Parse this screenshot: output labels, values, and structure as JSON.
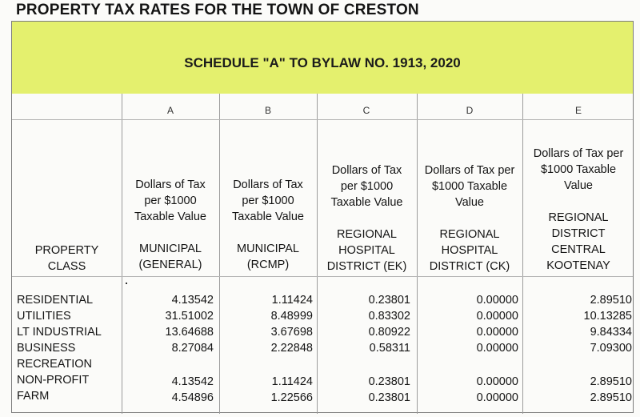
{
  "page_title": "PROPERTY TAX RATES FOR THE TOWN OF CRESTON",
  "schedule_title": "SCHEDULE \"A\" TO BYLAW NO. 1913, 2020",
  "property_class_header": [
    "PROPERTY",
    "CLASS"
  ],
  "columns": [
    {
      "letter": "A",
      "desc": [
        "Dollars of Tax",
        "per $1000",
        "Taxable Value"
      ],
      "name": [
        "MUNICIPAL",
        "(GENERAL)"
      ]
    },
    {
      "letter": "B",
      "desc": [
        "Dollars of Tax",
        "per $1000",
        "Taxable Value"
      ],
      "name": [
        "MUNICIPAL",
        "(RCMP)"
      ]
    },
    {
      "letter": "C",
      "desc": [
        "Dollars of Tax",
        "per $1000",
        "Taxable Value"
      ],
      "name": [
        "REGIONAL",
        "HOSPITAL",
        "DISTRICT (EK)"
      ]
    },
    {
      "letter": "D",
      "desc": [
        "Dollars of Tax per",
        "$1000 Taxable",
        "Value"
      ],
      "name": [
        "REGIONAL",
        "HOSPITAL",
        "DISTRICT (CK)"
      ]
    },
    {
      "letter": "E",
      "desc": [
        "Dollars of Tax per",
        "$1000 Taxable",
        "Value"
      ],
      "name": [
        "REGIONAL",
        "DISTRICT",
        "CENTRAL",
        "KOOTENAY"
      ]
    }
  ],
  "rows": [
    {
      "label": "RESIDENTIAL",
      "values": [
        "4.13542",
        "1.11424",
        "0.23801",
        "0.00000",
        "2.89510"
      ]
    },
    {
      "label": "UTILITIES",
      "values": [
        "31.51002",
        "8.48999",
        "0.83302",
        "0.00000",
        "10.13285"
      ]
    },
    {
      "label": "LT INDUSTRIAL",
      "values": [
        "13.64688",
        "3.67698",
        "0.80922",
        "0.00000",
        "9.84334"
      ]
    },
    {
      "label": "BUSINESS",
      "values": [
        "8.27084",
        "2.22848",
        "0.58311",
        "0.00000",
        "7.09300"
      ]
    },
    {
      "label": "RECREATION",
      "values": [
        "",
        "",
        "",
        "",
        ""
      ]
    },
    {
      "label": "NON-PROFIT",
      "values": [
        "4.13542",
        "1.11424",
        "0.23801",
        "0.00000",
        "2.89510"
      ]
    },
    {
      "label": "FARM",
      "values": [
        "4.54896",
        "1.22566",
        "0.23801",
        "0.00000",
        "2.89510"
      ]
    }
  ]
}
